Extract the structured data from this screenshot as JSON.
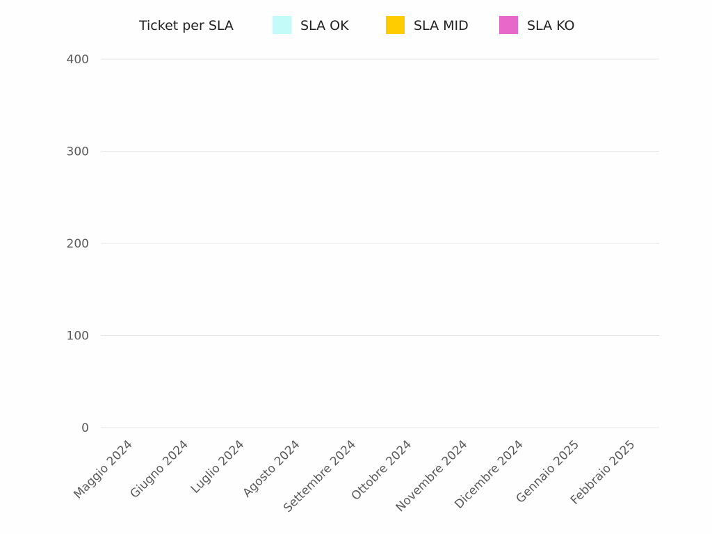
{
  "chart_data": {
    "type": "bar",
    "stacked": true,
    "title": "Ticket per SLA",
    "xlabel": "",
    "ylabel": "",
    "categories": [
      "Maggio 2024",
      "Giugno 2024",
      "Luglio 2024",
      "Agosto 2024",
      "Settembre 2024",
      "Ottobre 2024",
      "Novembre 2024",
      "Dicembre 2024",
      "Gennaio 2025",
      "Febbraio 2025"
    ],
    "series": [
      {
        "name": "SLA OK",
        "color": "#c2fbf7",
        "values": [
          0,
          0,
          0,
          0,
          0,
          0,
          0,
          0,
          0,
          0
        ]
      },
      {
        "name": "SLA MID",
        "color": "#ffcc00",
        "values": [
          0,
          0,
          0,
          0,
          0,
          0,
          0,
          0,
          0,
          0
        ]
      },
      {
        "name": "SLA KO",
        "color": "#e868c9",
        "values": [
          0,
          0,
          0,
          0,
          0,
          0,
          0,
          0,
          0,
          0
        ]
      }
    ],
    "ylim": [
      0,
      400
    ],
    "yticks": [
      0,
      100,
      200,
      300,
      400
    ],
    "grid": true,
    "legend_position": "top"
  }
}
